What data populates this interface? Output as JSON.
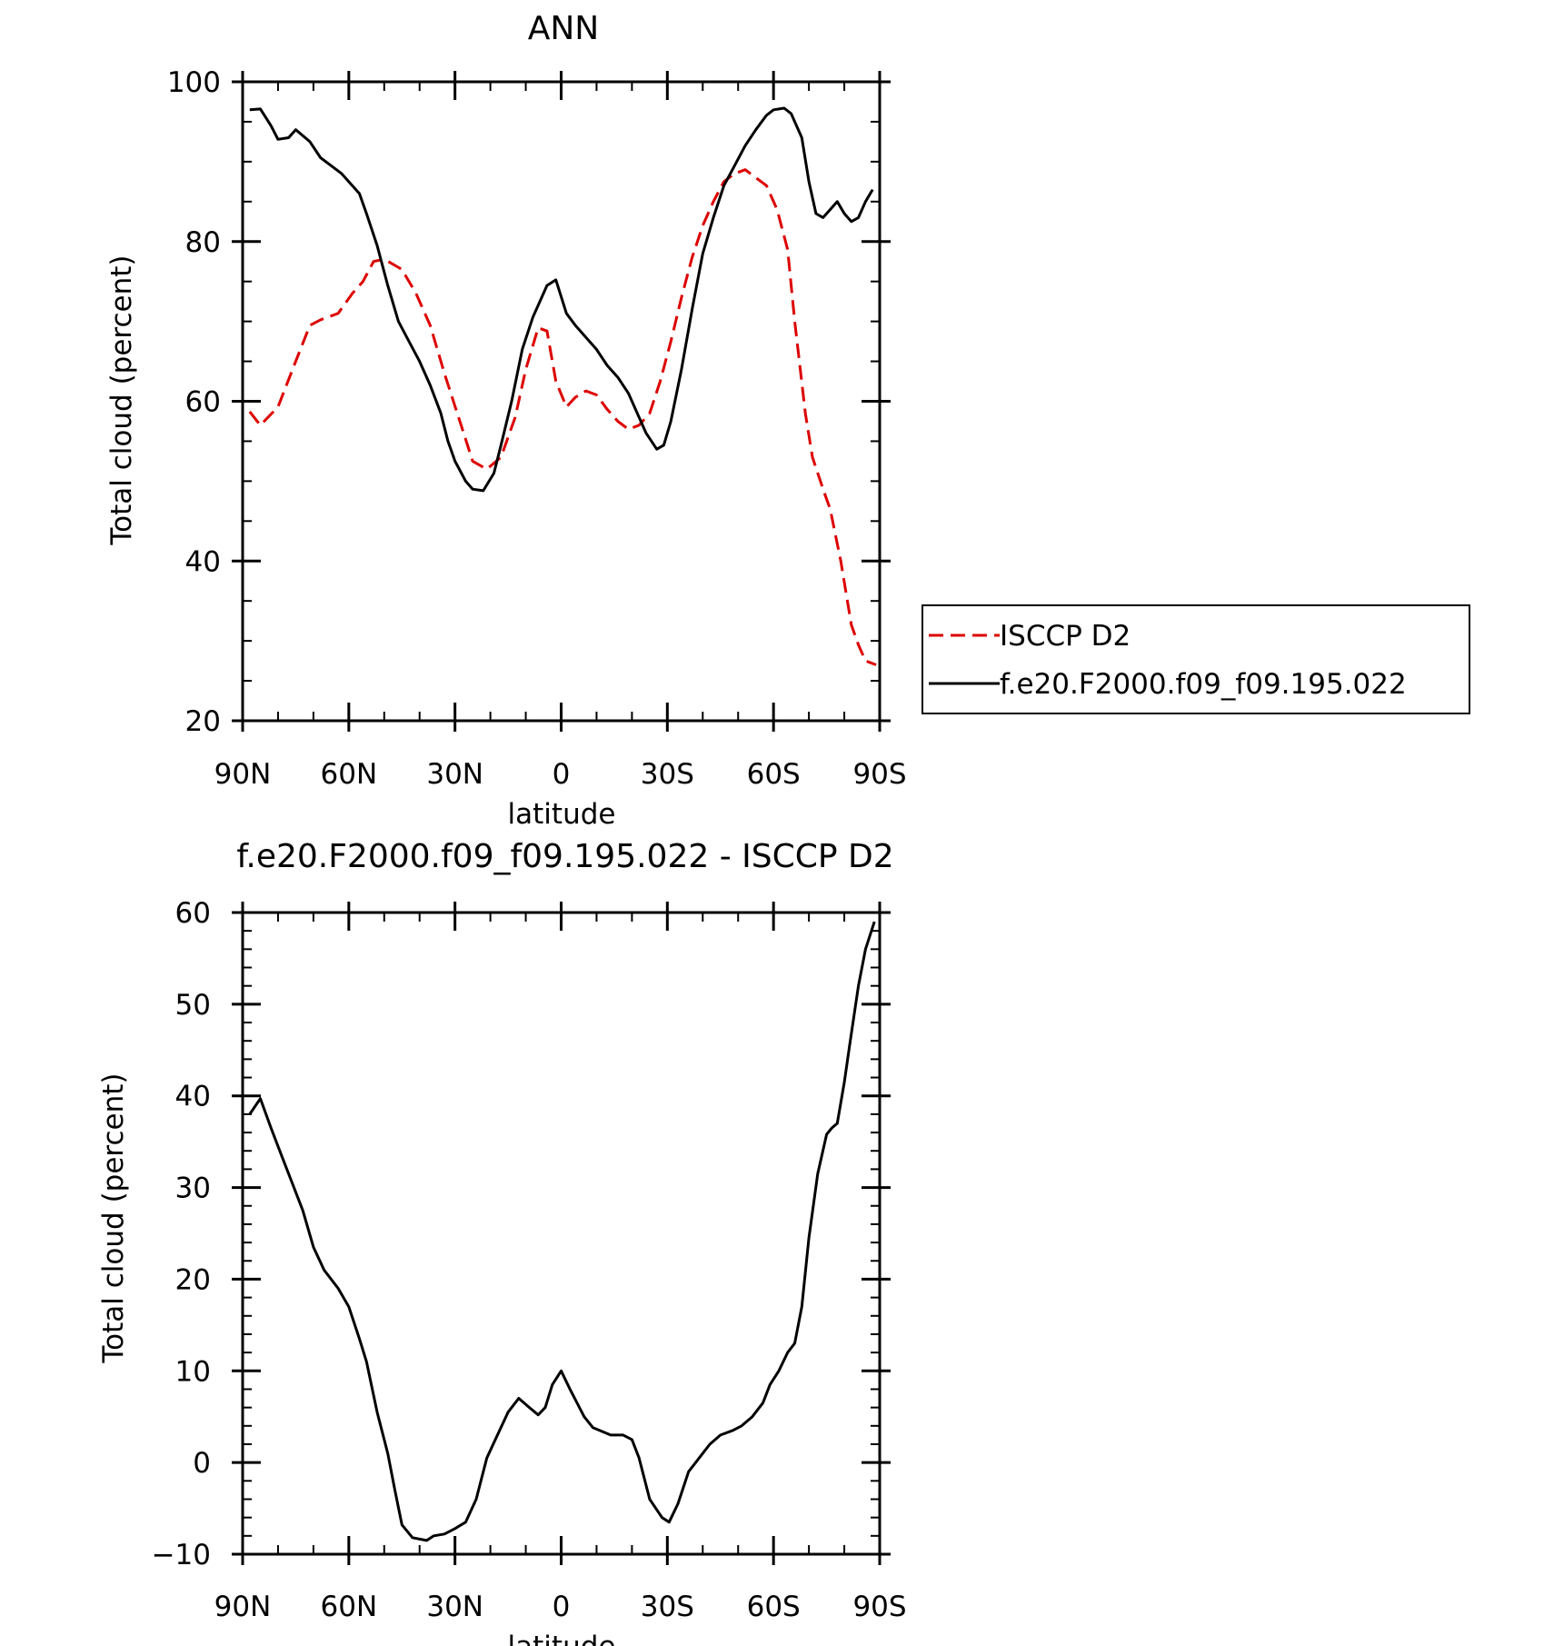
{
  "chart_data": [
    {
      "type": "line",
      "title": "ANN",
      "xlabel": "latitude",
      "ylabel": "Total cloud (percent)",
      "xlim": [
        90,
        -90
      ],
      "ylim": [
        20,
        100
      ],
      "x_tick_values": [
        90,
        60,
        30,
        0,
        -30,
        -60,
        -90
      ],
      "x_tick_labels": [
        "90N",
        "60N",
        "30N",
        "0",
        "30S",
        "60S",
        "90S"
      ],
      "y_tick_values": [
        20,
        40,
        60,
        80,
        100
      ],
      "y_tick_labels": [
        "20",
        "40",
        "60",
        "80",
        "100"
      ],
      "grid": false,
      "legend_position": "right",
      "series": [
        {
          "name": "ISCCP D2",
          "color": "#dd0000",
          "dash": "dashed",
          "x": [
            88,
            85,
            80,
            75,
            71,
            68,
            63,
            59,
            56,
            53,
            50,
            45,
            41,
            37,
            33,
            29,
            25,
            21,
            17,
            13,
            10,
            6.5,
            4,
            1.5,
            -1.5,
            -4,
            -7,
            -10,
            -13,
            -16,
            -19,
            -22,
            -25,
            -28,
            -31,
            -34,
            -37,
            -40,
            -43,
            -46,
            -49,
            -52,
            -55,
            -58,
            -61,
            -64,
            -66,
            -69,
            -71,
            -74,
            -76,
            -79,
            -82,
            -84,
            -86,
            -89
          ],
          "y": [
            58.7,
            57.0,
            59.3,
            65.0,
            69.5,
            70.2,
            71.0,
            73.5,
            75.0,
            77.5,
            77.8,
            76.5,
            73.5,
            69.5,
            63.5,
            58.0,
            52.5,
            51.5,
            53.0,
            58.0,
            64.0,
            69.2,
            68.8,
            62.5,
            59.3,
            60.5,
            61.3,
            60.8,
            59.0,
            57.5,
            56.5,
            57.0,
            58.5,
            62.5,
            67.5,
            73.0,
            78.0,
            82.0,
            85.0,
            87.5,
            88.5,
            89.0,
            88.0,
            87.0,
            84.0,
            79.0,
            70.0,
            58.5,
            53.0,
            49.0,
            46.5,
            40.0,
            32.0,
            29.5,
            27.5,
            27.0
          ]
        },
        {
          "name": "f.e20.F2000.f09_f09.195.022",
          "color": "#000000",
          "dash": "solid",
          "x": [
            88,
            85,
            82,
            80,
            77,
            75,
            71,
            68,
            65,
            62,
            59,
            57,
            55,
            52,
            49,
            46,
            43,
            40,
            37,
            34,
            32,
            30,
            27,
            25,
            22,
            19,
            17,
            14,
            11,
            8,
            4,
            1.5,
            -1.5,
            -4,
            -7,
            -10,
            -13,
            -16,
            -19,
            -21,
            -24,
            -27,
            -29,
            -31,
            -34,
            -37,
            -40,
            -43,
            -46,
            -49,
            -52,
            -55,
            -58,
            -60,
            -63,
            -65,
            -68,
            -70,
            -72,
            -74,
            -76,
            -78,
            -80,
            -82,
            -84,
            -86,
            -88
          ],
          "y": [
            96.5,
            96.6,
            94.5,
            92.8,
            93.0,
            94.0,
            92.5,
            90.5,
            89.5,
            88.5,
            87.0,
            86.0,
            83.5,
            79.5,
            74.5,
            70.0,
            67.5,
            65.0,
            62.0,
            58.5,
            55.0,
            52.5,
            50.0,
            49.0,
            48.8,
            51.0,
            54.5,
            60.0,
            66.5,
            70.5,
            74.5,
            75.2,
            71.0,
            69.5,
            68.0,
            66.5,
            64.5,
            63.0,
            61.0,
            59.0,
            56.0,
            54.0,
            54.5,
            57.5,
            64.0,
            71.5,
            78.5,
            83.0,
            87.0,
            89.5,
            92.0,
            94.0,
            95.8,
            96.5,
            96.7,
            96.0,
            93.0,
            87.5,
            83.5,
            83.0,
            84.0,
            85.0,
            83.5,
            82.5,
            83.0,
            85.0,
            86.5
          ]
        }
      ]
    },
    {
      "type": "line",
      "title": "f.e20.F2000.f09_f09.195.022 - ISCCP D2",
      "xlabel": "latitude",
      "ylabel": "Total cloud (percent)",
      "xlim": [
        90,
        -90
      ],
      "ylim": [
        -10,
        60
      ],
      "x_tick_values": [
        90,
        60,
        30,
        0,
        -30,
        -60,
        -90
      ],
      "x_tick_labels": [
        "90N",
        "60N",
        "30N",
        "0",
        "30S",
        "60S",
        "90S"
      ],
      "y_tick_values": [
        -10,
        0,
        10,
        20,
        30,
        40,
        50,
        60
      ],
      "y_tick_labels": [
        "−10",
        "0",
        "10",
        "20",
        "30",
        "40",
        "50",
        "60"
      ],
      "grid": false,
      "series": [
        {
          "color": "#000000",
          "dash": "solid",
          "x": [
            88,
            85,
            82,
            79,
            76,
            73,
            70,
            67,
            63,
            60,
            57,
            55,
            52,
            49,
            47,
            45,
            42,
            38,
            36,
            33,
            30,
            27,
            24,
            21,
            18,
            15,
            12,
            9,
            6.5,
            4.5,
            2.5,
            0,
            -2.5,
            -6.5,
            -9,
            -14,
            -17.5,
            -20,
            -22,
            -25,
            -28.5,
            -30.5,
            -33,
            -36,
            -39,
            -42,
            -45,
            -48.5,
            -51,
            -54,
            -57,
            -59,
            -61.5,
            -64,
            -66,
            -68,
            -70,
            -72.5,
            -75,
            -76.5,
            -78,
            -80,
            -81.5,
            -84,
            -86,
            -88.5
          ],
          "y": [
            38.0,
            39.7,
            36.5,
            33.5,
            30.5,
            27.5,
            23.5,
            21.0,
            19.0,
            17.0,
            13.5,
            11.0,
            5.5,
            1.0,
            -3.0,
            -6.8,
            -8.2,
            -8.5,
            -8.0,
            -7.8,
            -7.2,
            -6.5,
            -4.0,
            0.5,
            3.0,
            5.5,
            7.0,
            6.0,
            5.2,
            6.0,
            8.5,
            10.0,
            8.0,
            5.0,
            3.8,
            3.0,
            3.0,
            2.5,
            0.5,
            -4.0,
            -6.0,
            -6.5,
            -4.5,
            -1.0,
            0.5,
            2.0,
            3.0,
            3.5,
            4.0,
            5.0,
            6.5,
            8.5,
            10.0,
            12.0,
            13.0,
            17.0,
            24.5,
            31.5,
            35.8,
            36.5,
            37.0,
            41.5,
            45.5,
            52.0,
            56.0,
            59.0
          ]
        }
      ]
    }
  ]
}
